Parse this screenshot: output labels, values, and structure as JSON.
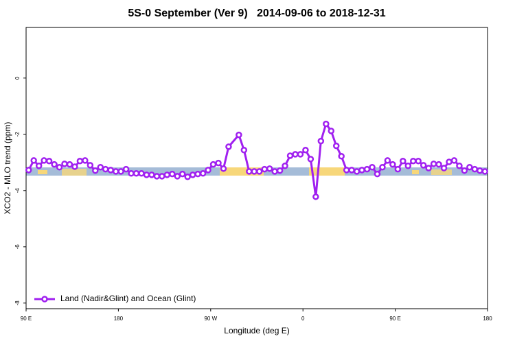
{
  "chart_data": {
    "type": "line",
    "title": "5S-0 September (Ver 9)   2014-09-06 to 2018-12-31",
    "xlabel": "Longitude (deg E)",
    "ylabel": "XCO2 - MLO trend (ppm)",
    "xlim": [
      90,
      540
    ],
    "xticks": [
      {
        "value": 90,
        "label": "90 E"
      },
      180,
      {
        "value": 270,
        "label": "90 W"
      },
      {
        "value": 360,
        "label": "0"
      },
      {
        "value": 450,
        "label": "90 E"
      },
      {
        "value": 540,
        "label": "180"
      }
    ],
    "ylim": [
      -8.2,
      1.8
    ],
    "yticks": [
      0,
      -2,
      -4,
      -6,
      -8
    ],
    "legend": "bottom-left",
    "x": [
      92.5,
      97.5,
      102.5,
      107.5,
      112.5,
      117.5,
      122.5,
      127.5,
      132.5,
      137.5,
      142.5,
      147.5,
      152.5,
      157.5,
      162.5,
      167.5,
      172.5,
      177.5,
      182.5,
      187.5,
      192.5,
      197.5,
      202.5,
      207.5,
      212.5,
      217.5,
      222.5,
      227.5,
      232.5,
      237.5,
      242.5,
      247.5,
      252.5,
      257.5,
      262.5,
      267.5,
      272.5,
      277.5,
      282.5,
      287.5,
      297.5,
      302.5,
      307.5,
      312.5,
      317.5,
      322.5,
      327.5,
      332.5,
      337.5,
      342.5,
      347.5,
      352.5,
      357.5,
      362.5,
      367.5,
      372.5,
      377.5,
      382.5,
      387.5,
      392.5,
      397.5,
      402.5,
      407.5,
      412.5,
      417.5,
      422.5,
      427.5,
      432.5,
      437.5,
      442.5,
      447.5,
      452.5,
      457.5,
      462.5,
      467.5,
      472.5,
      477.5,
      482.5,
      487.5,
      492.5,
      497.5,
      502.5,
      507.5,
      512.5,
      517.5,
      522.5,
      527.5,
      532.5,
      537.5
    ],
    "series": [
      {
        "name": "Land (Nadir&Glint) and Ocean (Glint)",
        "color": "#a020f0",
        "values": [
          -3.27,
          -2.93,
          -3.12,
          -2.93,
          -2.95,
          -3.07,
          -3.17,
          -3.05,
          -3.07,
          -3.15,
          -2.95,
          -2.93,
          -3.1,
          -3.29,
          -3.17,
          -3.24,
          -3.27,
          -3.32,
          -3.32,
          -3.24,
          -3.39,
          -3.39,
          -3.39,
          -3.44,
          -3.44,
          -3.49,
          -3.49,
          -3.44,
          -3.41,
          -3.49,
          -3.41,
          -3.51,
          -3.44,
          -3.41,
          -3.39,
          -3.27,
          -3.07,
          -3.02,
          -3.22,
          -2.44,
          -2.02,
          -2.56,
          -3.32,
          -3.32,
          -3.32,
          -3.24,
          -3.22,
          -3.32,
          -3.29,
          -3.12,
          -2.76,
          -2.71,
          -2.71,
          -2.56,
          -2.88,
          -4.22,
          -2.24,
          -1.63,
          -1.88,
          -2.41,
          -2.78,
          -3.27,
          -3.27,
          -3.32,
          -3.27,
          -3.24,
          -3.17,
          -3.41,
          -3.17,
          -2.93,
          -3.07,
          -3.24,
          -2.95,
          -3.12,
          -2.95,
          -2.95,
          -3.1,
          -3.2,
          -3.05,
          -3.07,
          -3.2,
          -2.98,
          -2.93,
          -3.12,
          -3.29,
          -3.17,
          -3.24,
          -3.29,
          -3.32
        ]
      }
    ]
  }
}
